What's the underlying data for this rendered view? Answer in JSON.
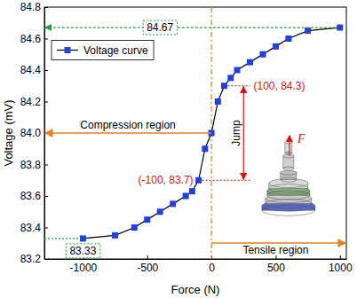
{
  "chart_data": {
    "type": "line",
    "x_label": "Force (N)",
    "y_label": "Voltage (mV)",
    "x": [
      -1000,
      -750,
      -600,
      -500,
      -400,
      -300,
      -200,
      -150,
      -100,
      -50,
      0,
      50,
      100,
      150,
      200,
      300,
      400,
      500,
      600,
      750,
      1000
    ],
    "series": [
      {
        "name": "Voltage curve",
        "color": "#2040e0",
        "marker": "square",
        "line_style": "solid",
        "values": [
          83.33,
          83.35,
          83.4,
          83.45,
          83.5,
          83.55,
          83.6,
          83.63,
          83.7,
          83.9,
          84.0,
          84.2,
          84.3,
          84.35,
          84.4,
          84.45,
          84.5,
          84.55,
          84.6,
          84.65,
          84.67
        ]
      }
    ],
    "xlim": [
      -1300,
      1050
    ],
    "xticks": [
      -1000,
      -500,
      0,
      500,
      1000
    ],
    "ylim": [
      83.2,
      84.8
    ],
    "yticks": [
      83.2,
      83.4,
      83.6,
      83.8,
      {
        "value": 84,
        "label": "84.0"
      },
      84.2,
      84.4,
      84.6,
      84.8
    ],
    "legend": "upper left",
    "grid": false,
    "annotations": [
      {
        "text": "84.67"
      },
      {
        "text": "83.33"
      },
      {
        "text": "(100, 84.3)"
      },
      {
        "text": "(-100, 83.7)"
      },
      {
        "text": "Jump"
      },
      {
        "text": "Compression region"
      },
      {
        "text": "Tensile region"
      },
      {
        "text": "F"
      }
    ]
  }
}
